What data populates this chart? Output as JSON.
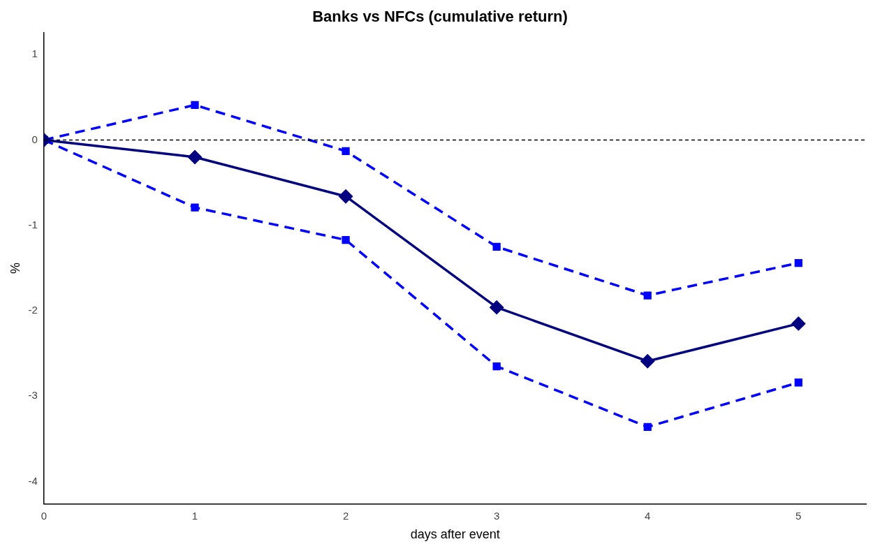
{
  "chart_data": {
    "type": "line",
    "title": "Banks vs NFCs (cumulative return)",
    "xlabel": "days after event",
    "ylabel": "%",
    "x": [
      0,
      1,
      2,
      3,
      4,
      5
    ],
    "series": [
      {
        "color": "#0000ff",
        "values": [
          0,
          0.41,
          -0.13,
          -1.25,
          -1.82,
          -1.44
        ],
        "line_style": "dashed",
        "marker": "square"
      },
      {
        "color": "#0000ff",
        "values": [
          0,
          -0.79,
          -1.17,
          -2.65,
          -3.36,
          -2.84
        ],
        "line_style": "dashed",
        "marker": "square"
      },
      {
        "color": "#000080",
        "values": [
          0,
          -0.2,
          -0.66,
          -1.96,
          -2.59,
          -2.15
        ],
        "line_style": "solid",
        "marker": "diamond"
      }
    ],
    "xlim": [
      0,
      5.45
    ],
    "xticks": [
      0,
      1,
      2,
      3,
      4,
      5
    ],
    "ylim": [
      -4.26,
      1.26
    ],
    "yticks": [
      -4,
      -3,
      -2,
      -1,
      0,
      1
    ],
    "ref_lines": [
      {
        "axis": "y",
        "value": 0,
        "color": "#000000",
        "line_style": "dashed"
      }
    ],
    "grid": false,
    "legend": false
  }
}
